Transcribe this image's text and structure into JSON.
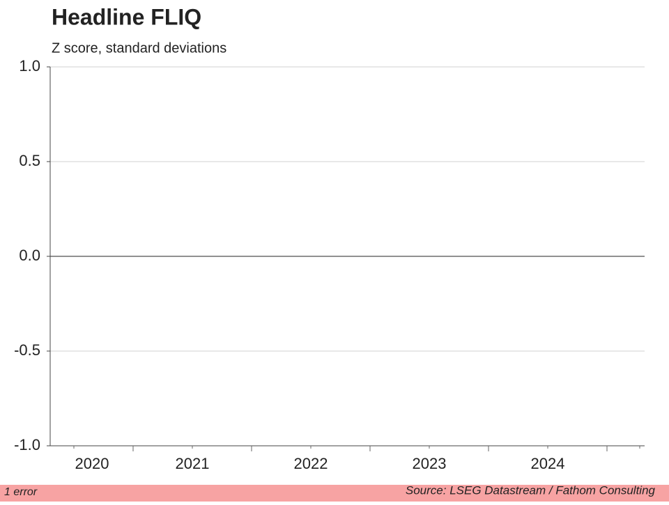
{
  "chart_data": {
    "type": "line",
    "title": "Headline FLIQ",
    "subtitle": "Z score, standard deviations",
    "categories": [
      "2020",
      "2021",
      "2022",
      "2023",
      "2024"
    ],
    "series": [],
    "ylim": [
      -1,
      1
    ],
    "yticks": [
      {
        "value": 1,
        "label": "1.0"
      },
      0.5,
      {
        "value": 0,
        "label": "0.0"
      },
      -0.5,
      {
        "value": -1,
        "label": "-1.0"
      }
    ],
    "grid": true
  },
  "footer": {
    "status": "1 error",
    "source": "Source: LSEG Datastream / Fathom Consulting"
  }
}
